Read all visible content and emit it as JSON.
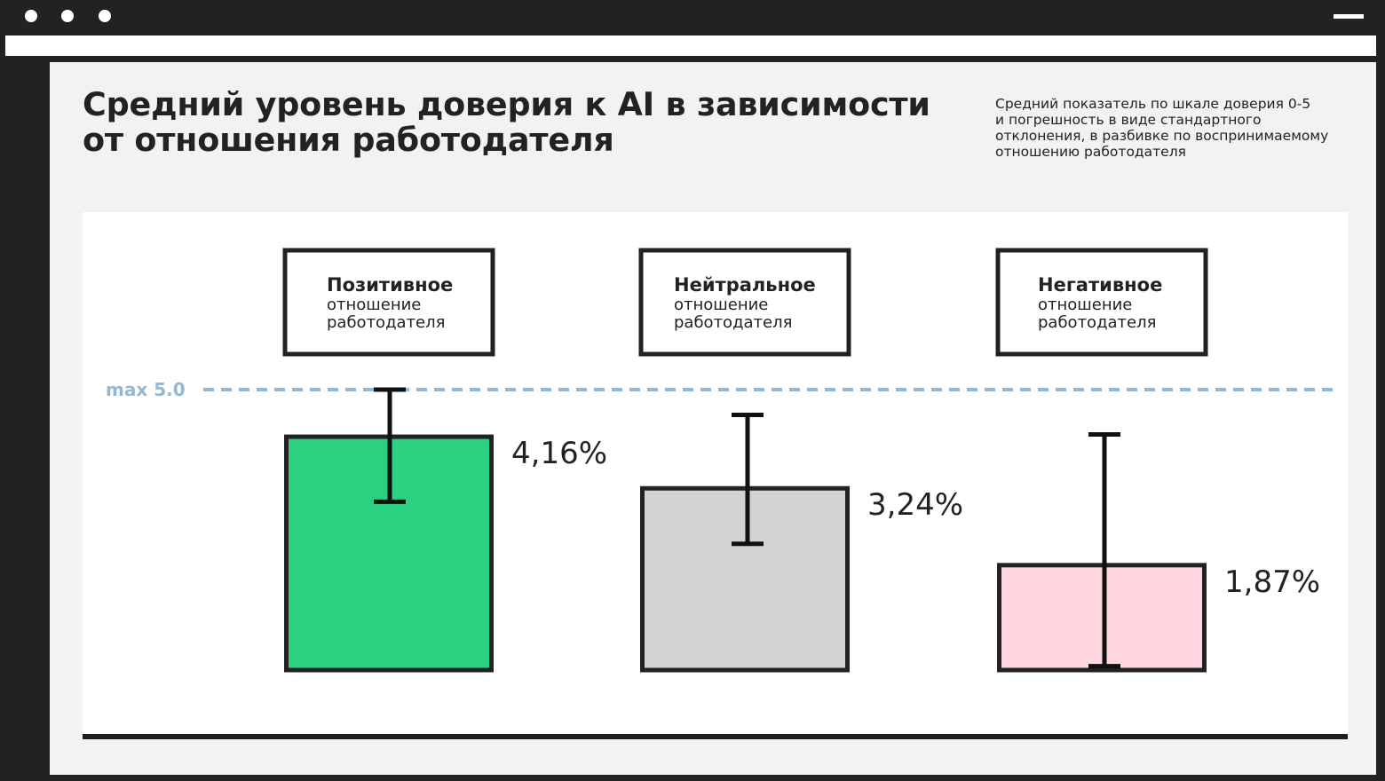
{
  "window": {
    "icons": [
      "window-dot-icon",
      "window-dot-icon",
      "window-dot-icon",
      "menu-bar-icon"
    ]
  },
  "title_lines": [
    "Средний уровень доверия к AI в зависимости",
    "от отношения работодателя"
  ],
  "subtitle_lines": [
    "Средний показатель по шкале доверия 0-5",
    "и погрешность в виде стандартного",
    "отклонения, в разбивке по воспринимаемому",
    "отношению работодателя"
  ],
  "colors": {
    "positive": "#29d180",
    "neutral": "#d3d3d3",
    "negative": "#ffd6df",
    "outline": "#222222",
    "max_line": "#8fb8d9"
  },
  "chart_data": {
    "type": "bar",
    "title": "Средний уровень доверия к AI в зависимости от отношения работодателя",
    "ylim": [
      0,
      5.0
    ],
    "max_line": {
      "label": "max 5.0",
      "value": 5.0
    },
    "categories": [
      {
        "bold": "Позитивное",
        "line2": "отношение",
        "line3": "работодателя"
      },
      {
        "bold": "Нейтральное",
        "line2": "отношение",
        "line3": "работодателя"
      },
      {
        "bold": "Негативное",
        "line2": "отношение",
        "line3": "работодателя"
      }
    ],
    "values": [
      4.16,
      3.24,
      1.87
    ],
    "value_labels": [
      "4,16%",
      "3,24%",
      "1,87%"
    ],
    "error_low": [
      3.0,
      2.25,
      0.07
    ],
    "error_high": [
      5.0,
      4.55,
      4.2
    ],
    "bar_colors": [
      "#29d180",
      "#d3d3d3",
      "#ffd6df"
    ]
  }
}
